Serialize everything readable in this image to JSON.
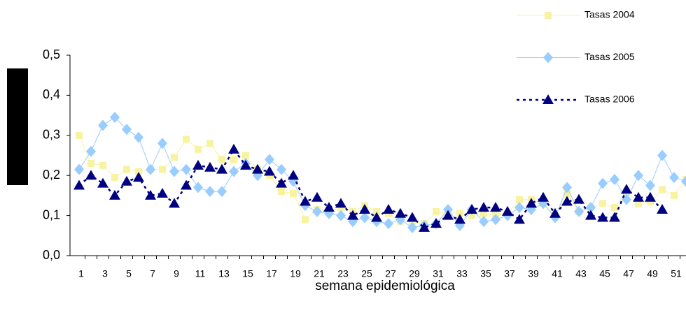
{
  "chart_data": {
    "type": "line",
    "x_label": "semana epidemiológica",
    "categories": [
      "1",
      null,
      "3",
      null,
      "5",
      null,
      "7",
      null,
      "9",
      null,
      "11",
      null,
      "13",
      null,
      "15",
      null,
      "17",
      null,
      "19",
      null,
      "21",
      null,
      "23",
      null,
      "25",
      null,
      "27",
      null,
      "29",
      null,
      "31",
      null,
      "33",
      null,
      "35",
      null,
      "37",
      null,
      "39",
      null,
      "41",
      null,
      "43",
      null,
      "45",
      null,
      "47",
      null,
      "49",
      null,
      "51",
      null
    ],
    "ylim": [
      0,
      0.5
    ],
    "yticks": [
      {
        "value": 0,
        "label": "0,0"
      },
      {
        "value": 0.1,
        "label": "0,1"
      },
      {
        "value": 0.2,
        "label": "0,2"
      },
      {
        "value": 0.3,
        "label": "0,3"
      },
      {
        "value": 0.4,
        "label": "0,4"
      },
      {
        "value": 0.5,
        "label": "0,5"
      }
    ],
    "legend": "top-right",
    "series": [
      {
        "name": "Tasas 2004",
        "color": "#f7f3a0",
        "marker": "square",
        "dash": "solid",
        "values": [
          0.3,
          0.23,
          0.225,
          0.195,
          0.215,
          0.21,
          0.215,
          0.215,
          0.245,
          0.29,
          0.265,
          0.28,
          0.24,
          0.24,
          0.25,
          0.215,
          0.2,
          0.16,
          0.155,
          0.09,
          0.115,
          0.11,
          0.12,
          0.11,
          0.125,
          0.11,
          0.105,
          0.085,
          0.085,
          0.08,
          0.11,
          0.105,
          0.105,
          0.1,
          0.105,
          0.1,
          0.105,
          0.14,
          0.14,
          0.13,
          0.1,
          0.155,
          0.11,
          0.12,
          0.13,
          0.12,
          0.16,
          0.13,
          0.135,
          0.165,
          0.15,
          0.19
        ]
      },
      {
        "name": "Tasas 2005",
        "color": "#99ccff",
        "marker": "diamond",
        "dash": "solid",
        "values": [
          0.215,
          0.26,
          0.325,
          0.345,
          0.315,
          0.295,
          0.215,
          0.28,
          0.21,
          0.215,
          0.17,
          0.16,
          0.16,
          0.21,
          0.23,
          0.2,
          0.24,
          0.215,
          0.185,
          0.125,
          0.11,
          0.105,
          0.1,
          0.085,
          0.095,
          0.085,
          0.08,
          0.09,
          0.07,
          0.075,
          0.08,
          0.115,
          0.075,
          0.115,
          0.085,
          0.09,
          0.1,
          0.12,
          0.115,
          0.13,
          0.095,
          0.17,
          0.11,
          0.12,
          0.18,
          0.19,
          0.14,
          0.2,
          0.175,
          0.25,
          0.195,
          0.185
        ]
      },
      {
        "name": "Tasas 2006",
        "color": "#000080",
        "marker": "triangle",
        "dash": "dotted",
        "values": [
          0.175,
          0.2,
          0.18,
          0.15,
          0.185,
          0.195,
          0.15,
          0.155,
          0.13,
          0.175,
          0.225,
          0.22,
          0.215,
          0.265,
          0.225,
          0.215,
          0.21,
          0.18,
          0.2,
          0.135,
          0.145,
          0.12,
          0.13,
          0.1,
          0.115,
          0.095,
          0.115,
          0.105,
          0.095,
          0.07,
          0.08,
          0.1,
          0.09,
          0.115,
          0.12,
          0.12,
          0.11,
          0.09,
          0.13,
          0.145,
          0.105,
          0.135,
          0.14,
          0.1,
          0.095,
          0.095,
          0.165,
          0.145,
          0.145,
          0.115,
          null,
          null
        ]
      }
    ]
  }
}
